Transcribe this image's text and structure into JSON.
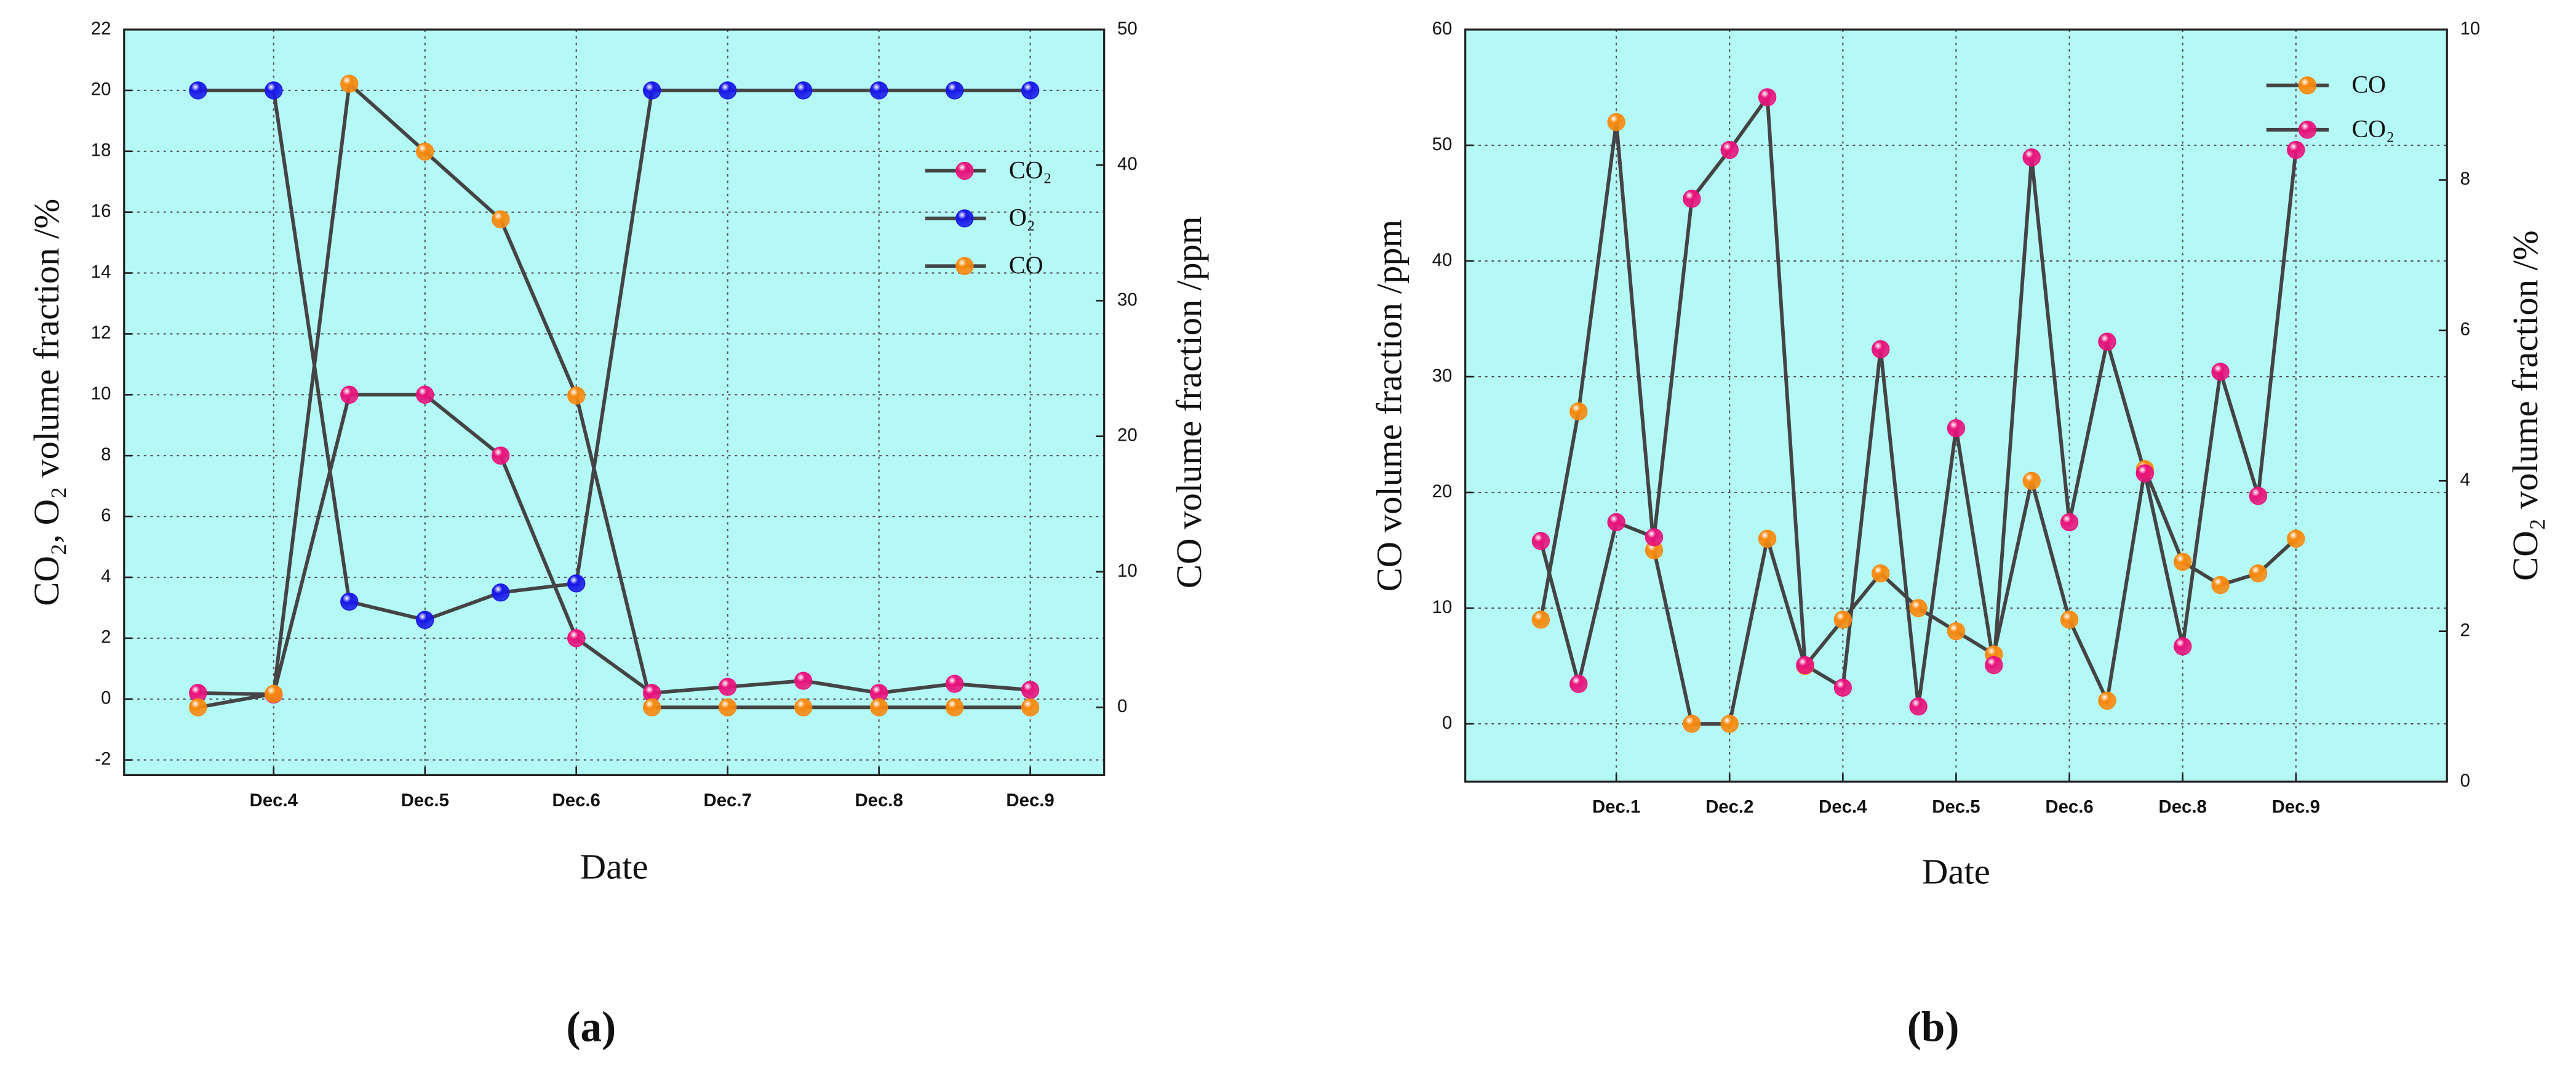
{
  "chart_data": [
    {
      "type": "line",
      "panel_label": "(a)",
      "x_label": "Date",
      "y_label": "CO₂, O₂ volume fraction /%",
      "y2_label": "CO volume fraction /ppm",
      "categories": [
        null,
        "Dec.4",
        null,
        "Dec.5",
        null,
        "Dec.6",
        null,
        "Dec.7",
        null,
        "Dec.8",
        null,
        "Dec.9"
      ],
      "ylim": [
        -2.5,
        22
      ],
      "yticks": [
        -2,
        0,
        2,
        4,
        6,
        8,
        10,
        12,
        14,
        16,
        18,
        20,
        22
      ],
      "y2lim": [
        -5,
        50
      ],
      "y2ticks": [
        0,
        10,
        20,
        30,
        40,
        50
      ],
      "grid": true,
      "legend": "right",
      "background": "#b5f9f7",
      "line_color": "#444444",
      "series": [
        {
          "name": "CO₂",
          "color": "#e8127c",
          "values": [
            0.2,
            0.15,
            10,
            10,
            8,
            2,
            0.2,
            0.4,
            0.6,
            0.2,
            0.5,
            0.3
          ]
        },
        {
          "name": "O₂",
          "color": "#1818e8",
          "values": [
            20,
            20,
            3.2,
            2.6,
            3.5,
            3.8,
            20,
            20,
            20,
            20,
            20,
            20
          ]
        },
        {
          "name": "CO",
          "color": "#f7890f",
          "axis": "y2",
          "values": [
            0,
            1,
            46,
            41,
            36,
            23,
            0,
            0,
            0,
            0,
            0,
            0
          ]
        }
      ]
    },
    {
      "type": "line",
      "panel_label": "(b)",
      "x_label": "Date",
      "y_label": "CO volume fraction /ppm",
      "y2_label": "CO₂ volume fraction /%",
      "categories": [
        null,
        null,
        "Dec.1",
        null,
        null,
        "Dec.2",
        null,
        null,
        "Dec.4",
        null,
        null,
        "Dec.5",
        null,
        null,
        "Dec.6",
        null,
        null,
        "Dec.8",
        null,
        null,
        "Dec.9"
      ],
      "ylim": [
        -5,
        60
      ],
      "yticks": [
        0,
        10,
        20,
        30,
        40,
        50,
        60
      ],
      "y2lim": [
        0,
        10
      ],
      "y2ticks": [
        0,
        2,
        4,
        6,
        8,
        10
      ],
      "grid": true,
      "legend": "upper right",
      "background": "#b5f9f7",
      "line_color": "#444444",
      "series": [
        {
          "name": "CO",
          "color": "#f7890f",
          "values": [
            9,
            27,
            52,
            15,
            0,
            0,
            16,
            5,
            9,
            13,
            10,
            8,
            6,
            21,
            9,
            2,
            22,
            14,
            12,
            13,
            16
          ]
        },
        {
          "name": "CO₂",
          "color": "#e8127c",
          "axis": "y2",
          "values": [
            3.2,
            1.3,
            3.45,
            3.25,
            7.75,
            8.4,
            9.1,
            1.55,
            1.25,
            5.75,
            1.0,
            4.7,
            1.55,
            8.3,
            3.45,
            5.85,
            4.1,
            1.8,
            5.45,
            3.8,
            8.4
          ]
        }
      ]
    }
  ]
}
